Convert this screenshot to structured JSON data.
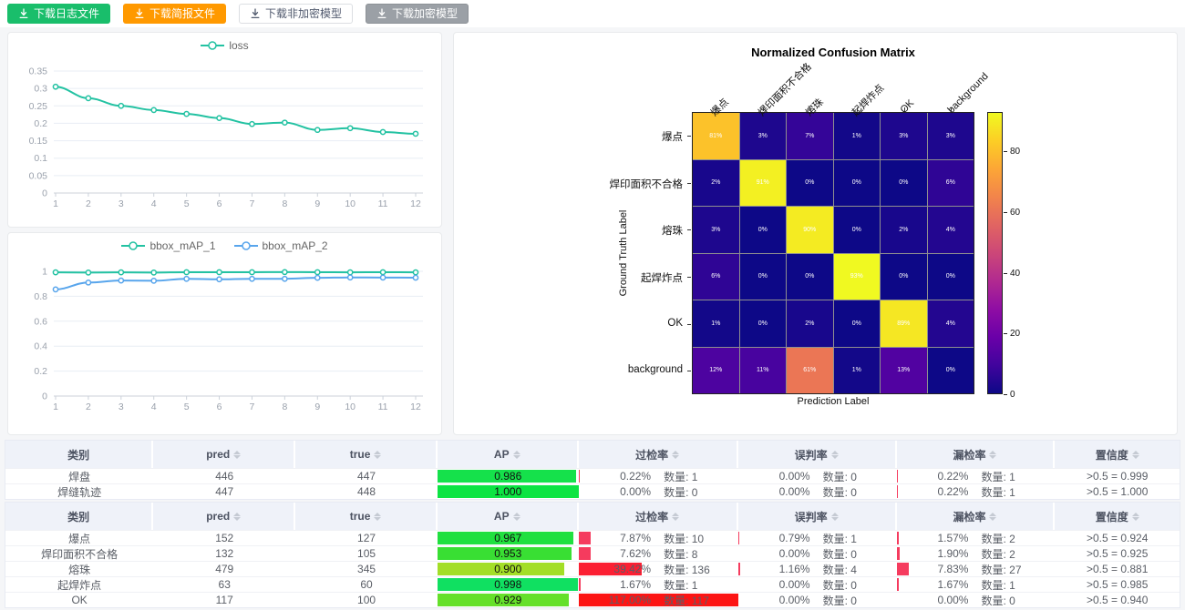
{
  "topbar": {
    "buttons": [
      {
        "label": "下载日志文件",
        "style": "success"
      },
      {
        "label": "下载简报文件",
        "style": "warning"
      },
      {
        "label": "下载非加密模型",
        "style": "default"
      },
      {
        "label": "下载加密模型",
        "style": "disabled"
      }
    ]
  },
  "colors": {
    "button_success": "#19be6b",
    "button_warning": "#ff9900",
    "button_disabled": "#9ba0a6",
    "series_teal": "#23c2a2",
    "series_blue": "#58a5ec",
    "overkill_red_small": "#f53b5e",
    "overkill_red_mid": "#fb1f33",
    "overkill_red_full": "#fc1414",
    "table_header_bg": "#eff2f9"
  },
  "chart_data": [
    {
      "type": "line",
      "title": "",
      "x": [
        1,
        2,
        3,
        4,
        5,
        6,
        7,
        8,
        9,
        10,
        11,
        12
      ],
      "series": [
        {
          "name": "loss",
          "color": "#23c2a2",
          "values": [
            0.305,
            0.272,
            0.25,
            0.238,
            0.227,
            0.215,
            0.198,
            0.202,
            0.181,
            0.186,
            0.175,
            0.17
          ]
        }
      ],
      "xlabel": "",
      "ylabel": "",
      "ylim": [
        0,
        0.35
      ],
      "yticks": [
        "0",
        "0.05",
        "0.1",
        "0.15",
        "0.2",
        "0.25",
        "0.3",
        "0.35"
      ],
      "legend_position": "top",
      "grid": true
    },
    {
      "type": "line",
      "title": "",
      "x": [
        1,
        2,
        3,
        4,
        5,
        6,
        7,
        8,
        9,
        10,
        11,
        12
      ],
      "series": [
        {
          "name": "bbox_mAP_1",
          "color": "#23c2a2",
          "values": [
            0.992,
            0.99,
            0.992,
            0.99,
            0.993,
            0.993,
            0.993,
            0.994,
            0.993,
            0.992,
            0.993,
            0.992
          ]
        },
        {
          "name": "bbox_mAP_2",
          "color": "#58a5ec",
          "values": [
            0.855,
            0.91,
            0.926,
            0.924,
            0.94,
            0.936,
            0.94,
            0.94,
            0.948,
            0.951,
            0.95,
            0.949
          ]
        }
      ],
      "xlabel": "",
      "ylabel": "",
      "ylim": [
        0,
        1
      ],
      "yticks": [
        "0",
        "0.2",
        "0.4",
        "0.6",
        "0.8",
        "1"
      ],
      "legend_position": "top",
      "grid": true
    },
    {
      "type": "heatmap",
      "title": "Normalized Confusion Matrix",
      "xlabel": "Prediction Label",
      "ylabel": "Ground Truth Label",
      "categories": [
        "爆点",
        "焊印面积不合格",
        "熔珠",
        "起焊炸点",
        "OK",
        "background"
      ],
      "matrix": [
        [
          81,
          3,
          7,
          1,
          3,
          3
        ],
        [
          2,
          91,
          0,
          0,
          0,
          6
        ],
        [
          3,
          0,
          90,
          0,
          2,
          4
        ],
        [
          6,
          0,
          0,
          93,
          0,
          0
        ],
        [
          1,
          0,
          2,
          0,
          89,
          4
        ],
        [
          12,
          11,
          61,
          1,
          13,
          0
        ]
      ],
      "unit": "%",
      "vmax": 93,
      "colormap": "plasma",
      "colorbar_ticks": [
        0,
        20,
        40,
        60,
        80
      ],
      "legend_position": "right-colorbar"
    }
  ],
  "tables": {
    "count_label": "数量:",
    "columns": [
      {
        "label": "类别",
        "sortable": false
      },
      {
        "label": "pred",
        "sortable": true
      },
      {
        "label": "true",
        "sortable": true
      },
      {
        "label": "AP",
        "sortable": true
      },
      {
        "label": "过检率",
        "sortable": true
      },
      {
        "label": "误判率",
        "sortable": true
      },
      {
        "label": "漏检率",
        "sortable": true
      },
      {
        "label": "置信度",
        "sortable": true
      }
    ],
    "groups": [
      {
        "rows": [
          {
            "category": "焊盘",
            "pred": "446",
            "true": "447",
            "ap": "0.986",
            "ap_color": "#15e14b",
            "overkill": {
              "pct": "0.22%",
              "count": "1",
              "bar": 0.22,
              "color": "#f53b5e"
            },
            "misjudge": {
              "pct": "0.00%",
              "count": "0",
              "bar": 0,
              "color": "#f53b5e"
            },
            "miss": {
              "pct": "0.22%",
              "count": "1",
              "bar": 0.22,
              "color": "#f53b5e"
            },
            "confidence": ">0.5 = 0.999"
          },
          {
            "category": "焊缝轨迹",
            "pred": "447",
            "true": "448",
            "ap": "1.000",
            "ap_color": "#0ce443",
            "overkill": {
              "pct": "0.00%",
              "count": "0",
              "bar": 0,
              "color": "#f53b5e"
            },
            "misjudge": {
              "pct": "0.00%",
              "count": "0",
              "bar": 0,
              "color": "#f53b5e"
            },
            "miss": {
              "pct": "0.22%",
              "count": "1",
              "bar": 0.22,
              "color": "#f53b5e"
            },
            "confidence": ">0.5 = 1.000"
          }
        ]
      },
      {
        "rows": [
          {
            "category": "爆点",
            "pred": "152",
            "true": "127",
            "ap": "0.967",
            "ap_color": "#20e03f",
            "overkill": {
              "pct": "7.87%",
              "count": "10",
              "bar": 7.87,
              "color": "#f53b5e"
            },
            "misjudge": {
              "pct": "0.79%",
              "count": "1",
              "bar": 0.79,
              "color": "#f53b5e"
            },
            "miss": {
              "pct": "1.57%",
              "count": "2",
              "bar": 1.57,
              "color": "#f53b5e"
            },
            "confidence": ">0.5 = 0.924"
          },
          {
            "category": "焊印面积不合格",
            "pred": "132",
            "true": "105",
            "ap": "0.953",
            "ap_color": "#39df33",
            "overkill": {
              "pct": "7.62%",
              "count": "8",
              "bar": 7.62,
              "color": "#f53b5e"
            },
            "misjudge": {
              "pct": "0.00%",
              "count": "0",
              "bar": 0,
              "color": "#f53b5e"
            },
            "miss": {
              "pct": "1.90%",
              "count": "2",
              "bar": 1.9,
              "color": "#f53b5e"
            },
            "confidence": ">0.5 = 0.925"
          },
          {
            "category": "熔珠",
            "pred": "479",
            "true": "345",
            "ap": "0.900",
            "ap_color": "#a3de27",
            "overkill": {
              "pct": "39.42%",
              "count": "136",
              "bar": 39.42,
              "color": "#fb1f33"
            },
            "misjudge": {
              "pct": "1.16%",
              "count": "4",
              "bar": 1.16,
              "color": "#f53b5e"
            },
            "miss": {
              "pct": "7.83%",
              "count": "27",
              "bar": 7.83,
              "color": "#f53b5e"
            },
            "confidence": ">0.5 = 0.881"
          },
          {
            "category": "起焊炸点",
            "pred": "63",
            "true": "60",
            "ap": "0.998",
            "ap_color": "#10e061",
            "overkill": {
              "pct": "1.67%",
              "count": "1",
              "bar": 1.67,
              "color": "#f53b5e"
            },
            "misjudge": {
              "pct": "0.00%",
              "count": "0",
              "bar": 0,
              "color": "#f53b5e"
            },
            "miss": {
              "pct": "1.67%",
              "count": "1",
              "bar": 1.67,
              "color": "#f53b5e"
            },
            "confidence": ">0.5 = 0.985"
          },
          {
            "category": "OK",
            "pred": "117",
            "true": "100",
            "ap": "0.929",
            "ap_color": "#65e02a",
            "overkill": {
              "pct": "117.00%",
              "count": "117",
              "bar": 100,
              "color": "#fc1414"
            },
            "misjudge": {
              "pct": "0.00%",
              "count": "0",
              "bar": 0,
              "color": "#f53b5e"
            },
            "miss": {
              "pct": "0.00%",
              "count": "0",
              "bar": 0,
              "color": "#f53b5e"
            },
            "confidence": ">0.5 = 0.940"
          }
        ]
      }
    ]
  }
}
